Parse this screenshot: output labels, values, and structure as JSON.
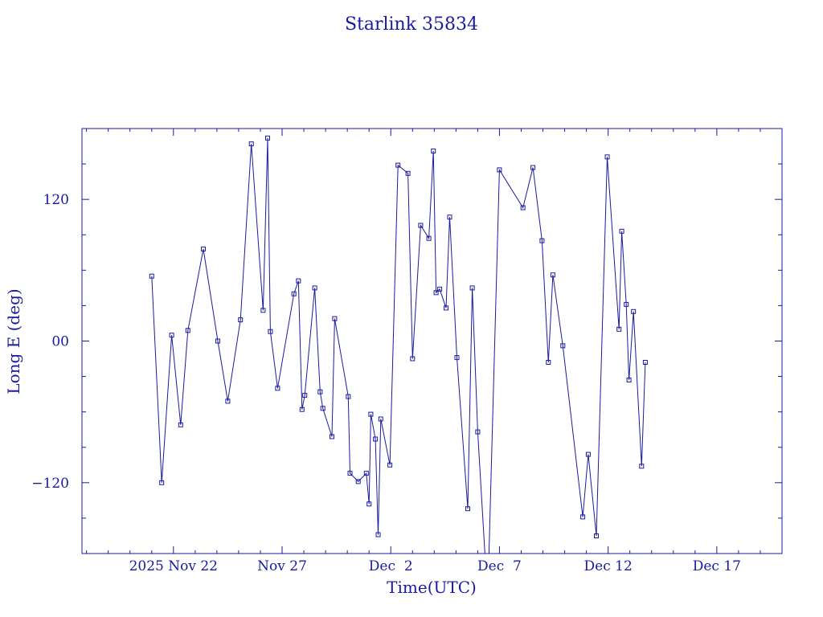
{
  "chart_data": {
    "type": "line",
    "title": "Starlink 35834",
    "xlabel": "Time(UTC)",
    "ylabel": "Long E (deg)",
    "xlim": [
      "2025-11-17T19:00",
      "2025-12-20T00:00"
    ],
    "ylim": [
      -180,
      180
    ],
    "xtick_labels": [
      {
        "x": "2025-11-22",
        "label": "2025 Nov 22"
      },
      {
        "x": "2025-11-27",
        "label": "Nov 27"
      },
      {
        "x": "2025-12-02",
        "label": "Dec  2"
      },
      {
        "x": "2025-12-07",
        "label": "Dec  7"
      },
      {
        "x": "2025-12-12",
        "label": "Dec 12"
      },
      {
        "x": "2025-12-17",
        "label": "Dec 17"
      }
    ],
    "xtick_minor": [
      "2025-11-18",
      "2025-11-19",
      "2025-11-20",
      "2025-11-21",
      "2025-11-23",
      "2025-11-24",
      "2025-11-25",
      "2025-11-26",
      "2025-11-28",
      "2025-11-29",
      "2025-11-30",
      "2025-12-01",
      "2025-12-03",
      "2025-12-04",
      "2025-12-05",
      "2025-12-06",
      "2025-12-08",
      "2025-12-09",
      "2025-12-10",
      "2025-12-11",
      "2025-12-13",
      "2025-12-14",
      "2025-12-15",
      "2025-12-16",
      "2025-12-18",
      "2025-12-19"
    ],
    "ytick_labels": [
      {
        "y": 120,
        "label": "120"
      },
      {
        "y": 0,
        "label": "00"
      },
      {
        "y": -120,
        "label": "−120"
      }
    ],
    "ytick_minor": [
      -150,
      -90,
      -60,
      -30,
      30,
      60,
      90,
      150
    ],
    "grid": false,
    "colors": {
      "line": "#1a1aa0",
      "axes": "#1a1aa0",
      "text": "#1a1aa0"
    },
    "series": [
      {
        "marker": "square",
        "points": [
          [
            "2025-11-21T00:00",
            55
          ],
          [
            "2025-11-21T11:00",
            -120
          ],
          [
            "2025-11-21T22:00",
            5
          ],
          [
            "2025-11-22T08:00",
            -71
          ],
          [
            "2025-11-22T16:00",
            9
          ],
          [
            "2025-11-23T09:00",
            78
          ],
          [
            "2025-11-24T01:00",
            0
          ],
          [
            "2025-11-24T12:00",
            -51
          ],
          [
            "2025-11-25T02:00",
            18
          ],
          [
            "2025-11-25T14:00",
            167
          ],
          [
            "2025-11-26T03:00",
            26
          ],
          [
            "2025-11-26T08:00",
            172
          ],
          [
            "2025-11-26T11:00",
            8
          ],
          [
            "2025-11-26T19:00",
            -40
          ],
          [
            "2025-11-27T13:00",
            40
          ],
          [
            "2025-11-27T18:00",
            51
          ],
          [
            "2025-11-27T22:00",
            -58
          ],
          [
            "2025-11-28T01:00",
            -46
          ],
          [
            "2025-11-28T12:00",
            45
          ],
          [
            "2025-11-28T18:00",
            -43
          ],
          [
            "2025-11-28T21:00",
            -57
          ],
          [
            "2025-11-29T07:00",
            -81
          ],
          [
            "2025-11-29T10:00",
            19
          ],
          [
            "2025-11-30T01:00",
            -47
          ],
          [
            "2025-11-30T03:00",
            -112
          ],
          [
            "2025-11-30T12:00",
            -119
          ],
          [
            "2025-11-30T21:00",
            -112
          ],
          [
            "2025-12-01T00:00",
            -138
          ],
          [
            "2025-12-01T02:00",
            -62
          ],
          [
            "2025-12-01T07:00",
            -83
          ],
          [
            "2025-12-01T10:00",
            -164
          ],
          [
            "2025-12-01T13:00",
            -66
          ],
          [
            "2025-12-01T23:00",
            -105
          ],
          [
            "2025-12-02T08:00",
            149
          ],
          [
            "2025-12-02T19:00",
            142
          ],
          [
            "2025-12-03T00:00",
            -15
          ],
          [
            "2025-12-03T09:00",
            98
          ],
          [
            "2025-12-03T18:00",
            87
          ],
          [
            "2025-12-03T23:00",
            161
          ],
          [
            "2025-12-04T02:00",
            41
          ],
          [
            "2025-12-04T06:00",
            44
          ],
          [
            "2025-12-04T13:00",
            28
          ],
          [
            "2025-12-04T17:00",
            105
          ],
          [
            "2025-12-05T01:00",
            -14
          ],
          [
            "2025-12-05T13:00",
            -142
          ],
          [
            "2025-12-05T18:00",
            45
          ],
          [
            "2025-12-06T00:00",
            -77
          ],
          [
            "2025-12-06T11:00",
            -220
          ],
          [
            "2025-12-07T00:00",
            145
          ],
          [
            "2025-12-08T02:00",
            113
          ],
          [
            "2025-12-08T13:00",
            147
          ],
          [
            "2025-12-08T23:00",
            85
          ],
          [
            "2025-12-09T06:00",
            -18
          ],
          [
            "2025-12-09T11:00",
            56
          ],
          [
            "2025-12-09T22:00",
            -4
          ],
          [
            "2025-12-10T20:00",
            -149
          ],
          [
            "2025-12-11T02:00",
            -96
          ],
          [
            "2025-12-11T11:00",
            -165
          ],
          [
            "2025-12-11T23:00",
            156
          ],
          [
            "2025-12-12T12:00",
            10
          ],
          [
            "2025-12-12T15:00",
            93
          ],
          [
            "2025-12-12T20:00",
            31
          ],
          [
            "2025-12-12T23:00",
            -33
          ],
          [
            "2025-12-13T04:00",
            25
          ],
          [
            "2025-12-13T13:00",
            -106
          ],
          [
            "2025-12-13T17:00",
            -18
          ]
        ]
      }
    ]
  }
}
